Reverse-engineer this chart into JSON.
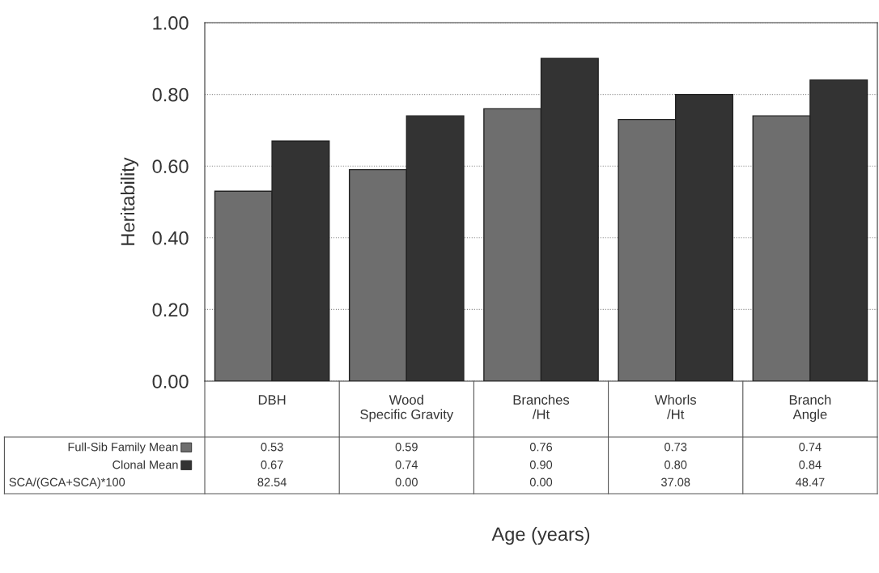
{
  "chart_data": {
    "type": "bar",
    "ylabel": "Heritability",
    "categories": [
      "DBH",
      "Wood\nSpecific Gravity",
      "Branches\n/Ht",
      "Whorls\n/Ht",
      "Branch\nAngle"
    ],
    "series": [
      {
        "name": "Full-Sib Family Mean",
        "color": "#6e6e6e",
        "values": [
          0.53,
          0.59,
          0.76,
          0.73,
          0.74
        ],
        "value_labels": [
          "0.53",
          "0.59",
          "0.76",
          "0.73",
          "0.74"
        ]
      },
      {
        "name": "Clonal Mean",
        "color": "#333333",
        "values": [
          0.67,
          0.74,
          0.9,
          0.8,
          0.84
        ],
        "value_labels": [
          "0.67",
          "0.74",
          "0.90",
          "0.80",
          "0.84"
        ]
      }
    ],
    "ylim": [
      0,
      1
    ],
    "yticks": [
      {
        "value": 0,
        "label": "0.00"
      },
      {
        "value": 0.2,
        "label": "0.20"
      },
      {
        "value": 0.4,
        "label": "0.40"
      },
      {
        "value": 0.6,
        "label": "0.60"
      },
      {
        "value": 0.8,
        "label": "0.80"
      },
      {
        "value": 1,
        "label": "1.00"
      }
    ],
    "grid": "y",
    "legend": "bottom left",
    "annotations": [
      "SCA/(GCA+SCA)*100",
      "82.54",
      "0.00",
      "0.00",
      "37.08",
      "48.47",
      "Age (years)"
    ]
  }
}
